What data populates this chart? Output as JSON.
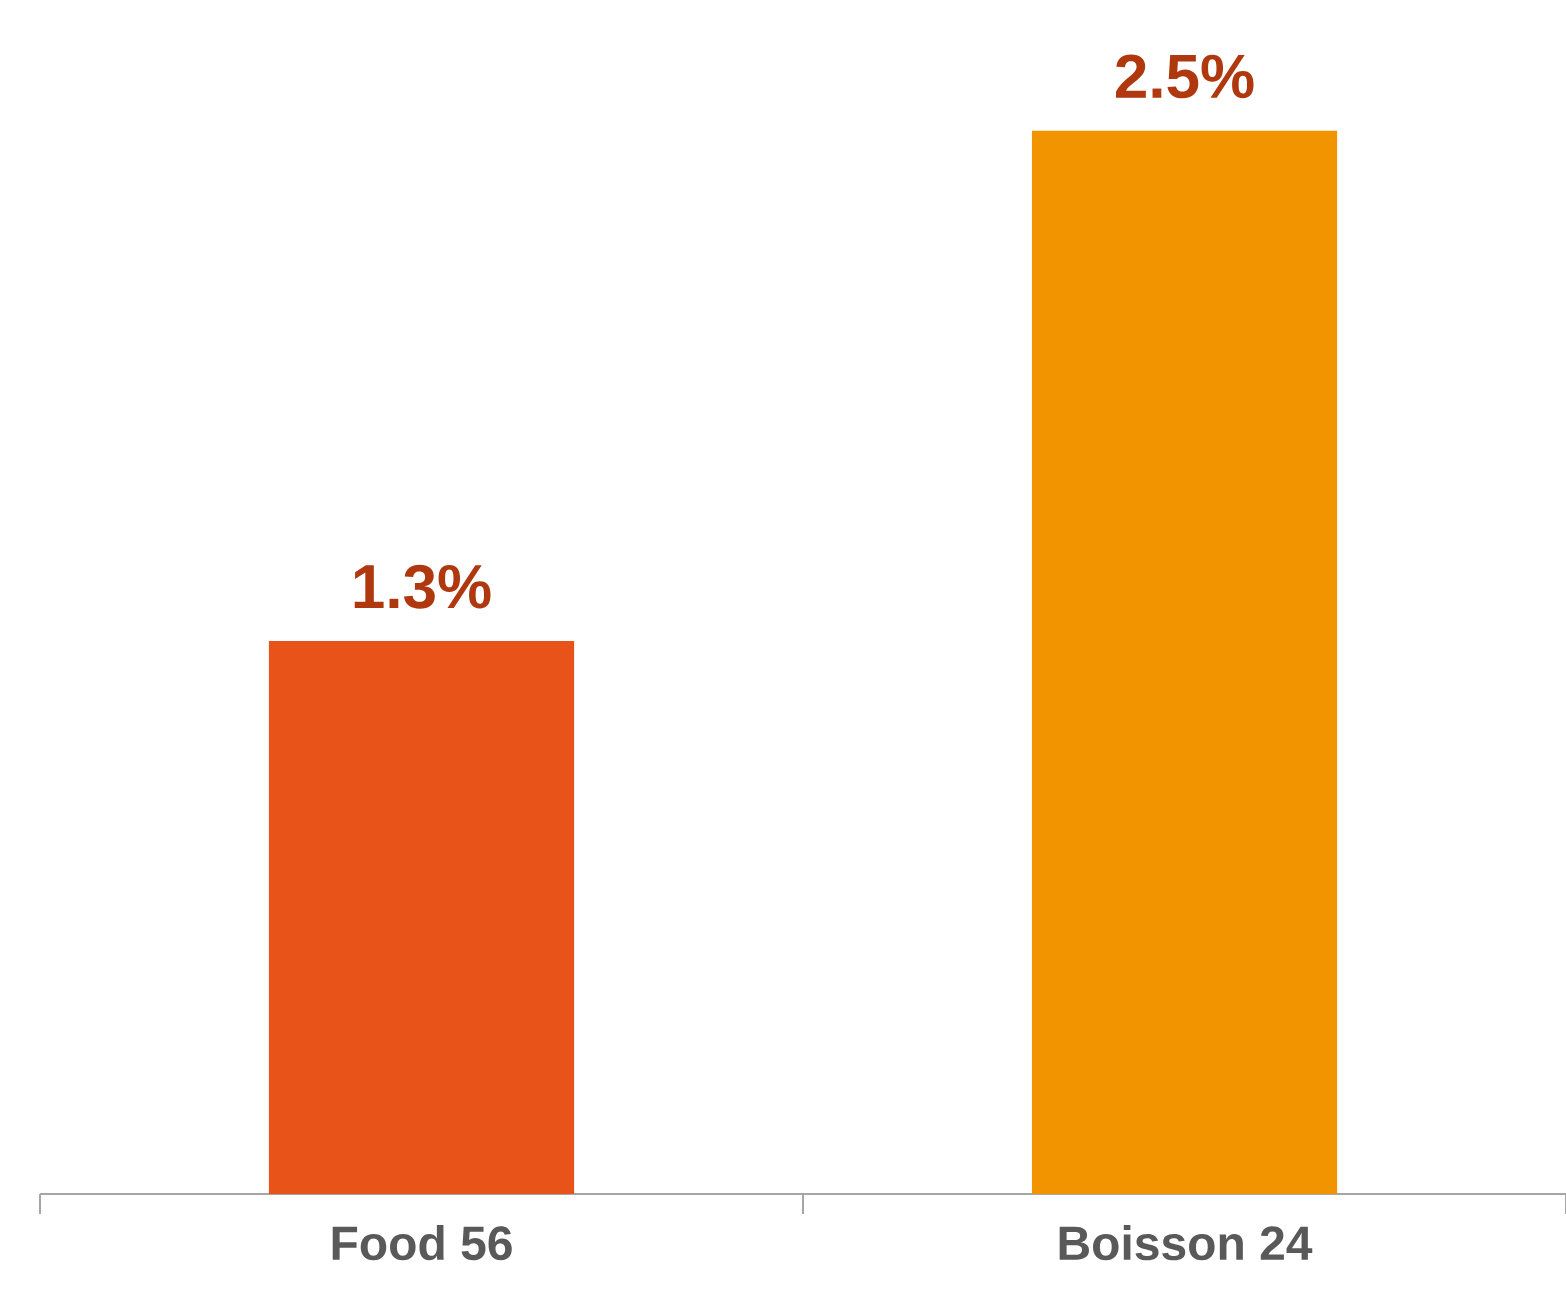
{
  "chart_data": {
    "type": "bar",
    "categories": [
      "Food 56",
      "Boisson 24"
    ],
    "values": [
      1.3,
      2.5
    ],
    "value_labels": [
      "1.3%",
      "2.5%"
    ],
    "colors": [
      "#e8531a",
      "#f29400"
    ],
    "grid": false
  }
}
